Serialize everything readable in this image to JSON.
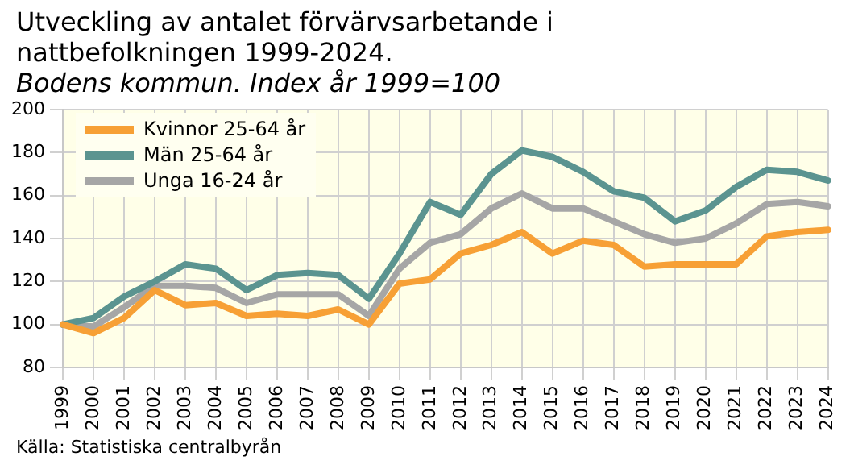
{
  "chart_data": {
    "type": "line",
    "title": "Utveckling av antalet förvärvsarbetande i nattbefolkningen 1999-2024.",
    "subtitle": "Bodens kommun. Index år 1999=100",
    "categories": [
      "1999",
      "2000",
      "2001",
      "2002",
      "2003",
      "2004",
      "2005",
      "2006",
      "2007",
      "2008",
      "2009",
      "2010",
      "2011",
      "2012",
      "2013",
      "2014",
      "2015",
      "2016",
      "2017",
      "2018",
      "2019",
      "2020",
      "2021",
      "2022",
      "2023",
      "2024"
    ],
    "series": [
      {
        "name": "Kvinnor 25-64 år",
        "color": "#f7a035",
        "values": [
          100,
          96,
          103,
          116,
          109,
          110,
          104,
          105,
          104,
          107,
          100,
          119,
          121,
          133,
          137,
          143,
          133,
          139,
          137,
          127,
          128,
          128,
          128,
          141,
          143,
          144
        ]
      },
      {
        "name": "Män 25-64 år",
        "color": "#5b9490",
        "values": [
          100,
          103,
          113,
          120,
          128,
          126,
          116,
          123,
          124,
          123,
          112,
          133,
          157,
          151,
          170,
          181,
          178,
          171,
          162,
          159,
          148,
          153,
          164,
          172,
          171,
          167
        ]
      },
      {
        "name": "Unga 16-24 år",
        "color": "#a6a6a6",
        "values": [
          100,
          99,
          108,
          118,
          118,
          117,
          110,
          114,
          114,
          114,
          104,
          126,
          138,
          142,
          154,
          161,
          154,
          154,
          148,
          142,
          138,
          140,
          147,
          156,
          157,
          155
        ]
      }
    ],
    "ylim": [
      80,
      200
    ],
    "yticks": [
      80,
      100,
      120,
      140,
      160,
      180,
      200
    ],
    "grid": true,
    "legend": "top left",
    "marker": "none",
    "line_style": "solid",
    "annotations": [
      "Källa: Statistiska centralbyrån"
    ]
  }
}
